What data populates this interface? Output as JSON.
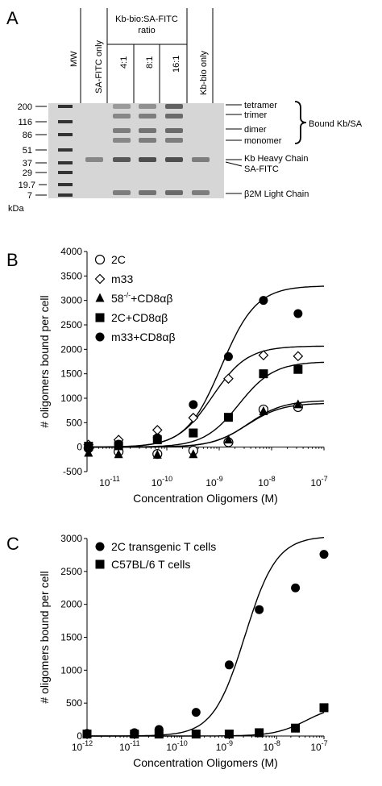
{
  "panel_a": {
    "letter": "A",
    "lanes": [
      "MW",
      "SA-FITC only",
      "4:1",
      "8:1",
      "16:1",
      "Kb-bio only"
    ],
    "ratio_header_line1": "Kb-bio:SA-FITC",
    "ratio_header_line2": "ratio",
    "mw_markers": [
      "200",
      "116",
      "86",
      "51",
      "37",
      "29",
      "19.7",
      "7"
    ],
    "mw_unit": "kDa",
    "band_labels": {
      "tetramer": "tetramer",
      "trimer": "trimer",
      "dimer": "dimer",
      "monomer": "monomer",
      "bound": "Bound Kb/SA",
      "heavy": "Kb Heavy Chain",
      "safitc": "SA-FITC",
      "light": "β2M Light Chain"
    },
    "band_intensity": {
      "lane_sa_only": [
        0,
        0,
        0,
        0,
        0.45,
        0
      ],
      "lane_4_1": [
        0.35,
        0.45,
        0.5,
        0.45,
        0.7,
        0.5
      ],
      "lane_8_1": [
        0.4,
        0.5,
        0.55,
        0.5,
        0.75,
        0.55
      ],
      "lane_16_1": [
        0.65,
        0.6,
        0.6,
        0.5,
        0.75,
        0.6
      ],
      "lane_kb_only": [
        0,
        0,
        0,
        0,
        0.5,
        0.5
      ]
    }
  },
  "chart_data": [
    {
      "panel": "B",
      "type": "scatter",
      "xscale": "log",
      "xlim": [
        3e-12,
        1e-07
      ],
      "ylim": [
        -500,
        4000
      ],
      "yticks": [
        -500,
        0,
        500,
        1000,
        1500,
        2000,
        2500,
        3000,
        3500,
        4000
      ],
      "xticks": [
        "10-11",
        "10-10",
        "10-9",
        "10-8",
        "10-7"
      ],
      "xlabel": "Concentration Oligomers (M)",
      "ylabel": "# oligomers bound per cell",
      "legend_position": "top-left",
      "series": [
        {
          "name": "2C",
          "marker": "open-circle",
          "x": [
            3.2e-12,
            1.2e-11,
            6.6e-11,
            3.2e-10,
            1.5e-09,
            7e-09,
            3.2e-08
          ],
          "y": [
            -20,
            -90,
            -140,
            -70,
            100,
            770,
            820
          ]
        },
        {
          "name": "m33",
          "marker": "open-diamond",
          "x": [
            3.2e-12,
            1.2e-11,
            6.6e-11,
            3.2e-10,
            1.5e-09,
            7e-09,
            3.2e-08
          ],
          "y": [
            50,
            150,
            350,
            600,
            1400,
            1880,
            1860
          ]
        },
        {
          "name": "58-/-+CD8αβ",
          "marker": "filled-triangle",
          "x": [
            3.2e-12,
            1.2e-11,
            6.6e-11,
            3.2e-10,
            1.5e-09,
            7e-09,
            3.2e-08
          ],
          "y": [
            -120,
            -150,
            -160,
            -150,
            150,
            730,
            870
          ]
        },
        {
          "name": "2C+CD8αβ",
          "marker": "filled-square",
          "x": [
            3.2e-12,
            1.2e-11,
            6.6e-11,
            3.2e-10,
            1.5e-09,
            7e-09,
            3.2e-08
          ],
          "y": [
            20,
            30,
            150,
            290,
            610,
            1500,
            1590
          ]
        },
        {
          "name": "m33+CD8αβ",
          "marker": "filled-circle",
          "x": [
            3.2e-12,
            1.2e-11,
            6.6e-11,
            3.2e-10,
            1.5e-09,
            7e-09,
            3.2e-08
          ],
          "y": [
            -10,
            60,
            190,
            870,
            1850,
            3000,
            2730
          ]
        }
      ]
    },
    {
      "panel": "C",
      "type": "scatter",
      "xscale": "log",
      "xlim": [
        1e-12,
        1e-07
      ],
      "ylim": [
        0,
        3000
      ],
      "yticks": [
        0,
        500,
        1000,
        1500,
        2000,
        2500,
        3000
      ],
      "xticks": [
        "10-12",
        "10-11",
        "10-10",
        "10-9",
        "10-8",
        "10-7"
      ],
      "xlabel": "Concentration Oligomers (M)",
      "ylabel": "# oligomers bound per cell",
      "legend_position": "top-left",
      "series": [
        {
          "name": "2C transgenic T cells",
          "marker": "filled-circle",
          "x": [
            1e-12,
            1e-11,
            3.3e-11,
            2e-10,
            1e-09,
            4.3e-09,
            2.5e-08,
            1e-07
          ],
          "y": [
            40,
            50,
            100,
            360,
            1080,
            1920,
            2250,
            2760
          ]
        },
        {
          "name": "C57BL/6 T cells",
          "marker": "filled-square",
          "x": [
            1e-12,
            1e-11,
            3.3e-11,
            2e-10,
            1e-09,
            4.3e-09,
            2.5e-08,
            1e-07
          ],
          "y": [
            30,
            30,
            30,
            30,
            30,
            50,
            120,
            430
          ]
        }
      ]
    }
  ],
  "colors": {
    "ink": "#000000",
    "gel_bg": "#d6d6d6",
    "band": "#2a2a2a"
  }
}
